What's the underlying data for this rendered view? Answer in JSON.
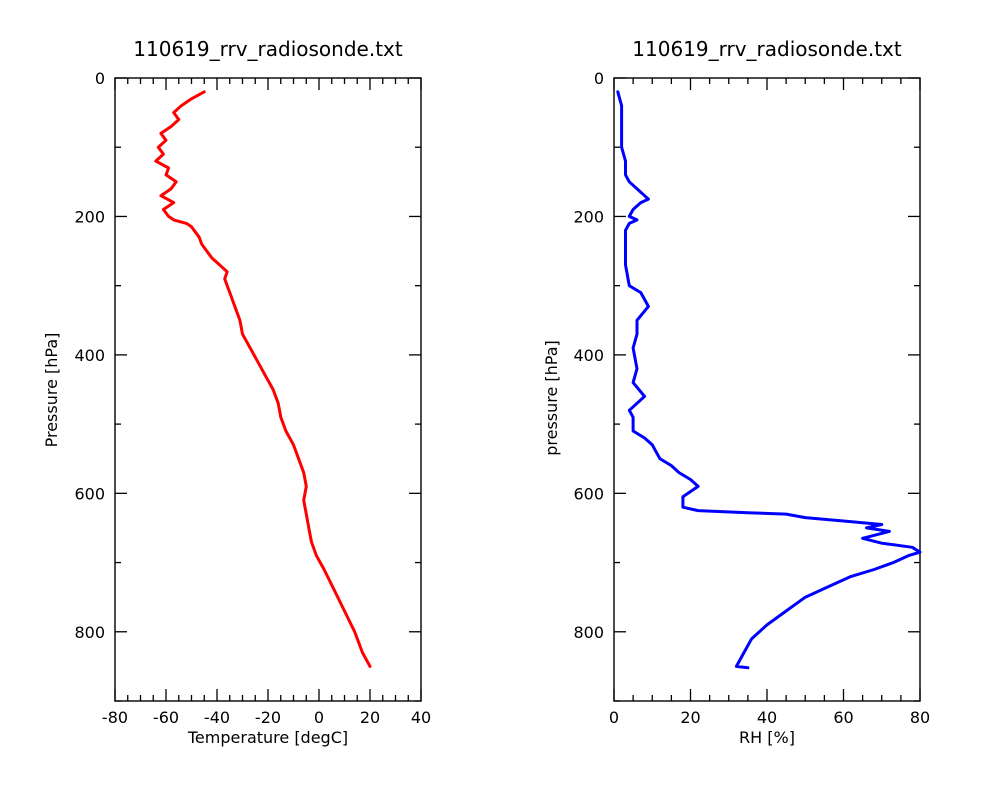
{
  "chart_data": [
    {
      "type": "line",
      "title": "110619_rrv_radiosonde.txt",
      "xlabel": "Temperature [degC]",
      "ylabel": "Pressure [hPa]",
      "xlim": [
        -80,
        40
      ],
      "ylim": [
        0,
        900
      ],
      "y_inverted": true,
      "x_ticks": [
        "-80",
        "-60",
        "-40",
        "-20",
        "0",
        "20",
        "40"
      ],
      "y_ticks": [
        "0",
        "200",
        "400",
        "600",
        "800"
      ],
      "grid": false,
      "color": "#ff0000",
      "series": [
        {
          "x": [
            -45,
            -50,
            -54,
            -57,
            -55,
            -58,
            -62,
            -60,
            -63,
            -61,
            -64,
            -59,
            -60,
            -56,
            -58,
            -62,
            -57,
            -61,
            -59,
            -57,
            -52,
            -50,
            -49,
            -47,
            -46,
            -44,
            -42,
            -39,
            -36,
            -37,
            -36,
            -35,
            -33,
            -31,
            -30,
            -27,
            -24,
            -21,
            -18,
            -16,
            -15,
            -13,
            -10,
            -8,
            -6,
            -5,
            -6,
            -5,
            -4,
            -3,
            -1,
            2,
            6,
            10,
            14,
            17,
            20
          ],
          "y": [
            20,
            30,
            40,
            50,
            60,
            70,
            80,
            90,
            100,
            110,
            120,
            130,
            140,
            150,
            160,
            170,
            180,
            190,
            200,
            205,
            210,
            215,
            220,
            230,
            240,
            250,
            260,
            270,
            280,
            290,
            300,
            310,
            330,
            350,
            370,
            390,
            410,
            430,
            450,
            470,
            490,
            510,
            530,
            550,
            570,
            590,
            610,
            630,
            650,
            670,
            690,
            710,
            740,
            770,
            800,
            830,
            850
          ]
        }
      ]
    },
    {
      "type": "line",
      "title": "110619_rrv_radiosonde.txt",
      "xlabel": "RH [%]",
      "ylabel": "pressure [hPa]",
      "xlim": [
        0,
        80
      ],
      "ylim": [
        0,
        900
      ],
      "y_inverted": true,
      "x_ticks": [
        "0",
        "20",
        "40",
        "60",
        "80"
      ],
      "y_ticks": [
        "0",
        "200",
        "400",
        "600",
        "800"
      ],
      "grid": false,
      "color": "#0000ff",
      "series": [
        {
          "x": [
            1,
            2,
            2,
            2,
            3,
            3,
            4,
            5,
            6,
            7,
            8,
            9,
            7,
            5,
            4,
            6,
            4,
            3,
            3,
            3,
            4,
            7,
            8,
            9,
            6,
            6,
            5,
            6,
            5,
            8,
            6,
            4,
            5,
            5,
            8,
            10,
            11,
            12,
            15,
            17,
            20,
            22,
            18,
            18,
            22,
            35,
            45,
            50,
            60,
            70,
            66,
            72,
            65,
            70,
            78,
            80,
            77,
            73,
            68,
            62,
            56,
            50,
            45,
            40,
            36,
            34,
            32,
            35
          ],
          "y": [
            20,
            40,
            70,
            100,
            120,
            140,
            150,
            155,
            160,
            165,
            170,
            175,
            180,
            190,
            200,
            205,
            210,
            220,
            240,
            270,
            300,
            310,
            320,
            330,
            350,
            370,
            390,
            420,
            440,
            460,
            470,
            480,
            490,
            510,
            520,
            530,
            540,
            550,
            560,
            570,
            580,
            590,
            605,
            620,
            625,
            628,
            630,
            635,
            640,
            645,
            650,
            655,
            665,
            672,
            678,
            685,
            690,
            700,
            710,
            720,
            735,
            750,
            770,
            790,
            810,
            830,
            850,
            852
          ]
        }
      ]
    }
  ]
}
